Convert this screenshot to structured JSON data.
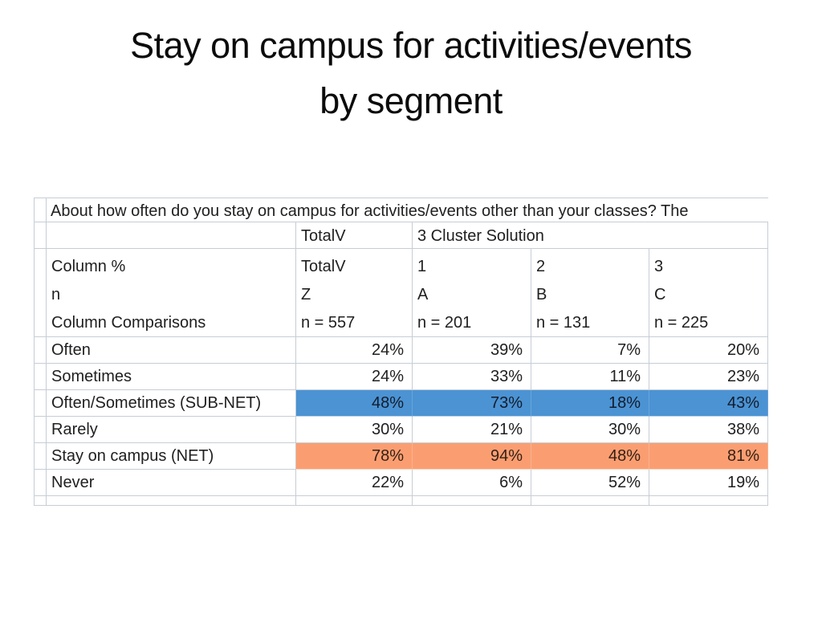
{
  "slide": {
    "title": {
      "line1": "Stay on campus for activities/events",
      "line2": "by segment"
    }
  },
  "table": {
    "question": "About how often do you stay on campus for activities/events other than your classes? The",
    "group_header": {
      "total_label": "TotalV",
      "cluster_label": "3 Cluster Solution"
    },
    "stub_header": {
      "line1": "Column %",
      "line2": "n",
      "line3": "Column Comparisons"
    },
    "column_headers": [
      {
        "line1": "TotalV",
        "line2": "Z",
        "line3": "n = 557"
      },
      {
        "line1": "1",
        "line2": "A",
        "line3": "n = 201"
      },
      {
        "line1": "2",
        "line2": "B",
        "line3": "n = 131"
      },
      {
        "line1": "3",
        "line2": "C",
        "line3": "n = 225"
      }
    ],
    "rows": [
      {
        "label": "Often",
        "values": [
          "24%",
          "39%",
          "7%",
          "20%"
        ],
        "highlight": "none"
      },
      {
        "label": "Sometimes",
        "values": [
          "24%",
          "33%",
          "11%",
          "23%"
        ],
        "highlight": "none"
      },
      {
        "label": "Often/Sometimes (SUB-NET)",
        "values": [
          "48%",
          "73%",
          "18%",
          "43%"
        ],
        "highlight": "blue"
      },
      {
        "label": "Rarely",
        "values": [
          "30%",
          "21%",
          "30%",
          "38%"
        ],
        "highlight": "none"
      },
      {
        "label": "Stay on campus (NET)",
        "values": [
          "78%",
          "94%",
          "48%",
          "81%"
        ],
        "highlight": "orange"
      },
      {
        "label": "Never",
        "values": [
          "22%",
          "6%",
          "52%",
          "19%"
        ],
        "highlight": "none"
      }
    ],
    "colors": {
      "blue_highlight": "#4B93D3",
      "orange_highlight": "#FA9E72",
      "gridline": "#C6CDD5",
      "text": "#202020"
    }
  },
  "chart_data": {
    "type": "table",
    "title": "Stay on campus for activities/events by segment",
    "question": "About how often do you stay on campus for activities/events other than your classes? The",
    "statistic": "Column %",
    "columns": [
      {
        "group": "TotalV",
        "label": "TotalV",
        "comparison_letter": "Z",
        "n": 557
      },
      {
        "group": "3 Cluster Solution",
        "label": "1",
        "comparison_letter": "A",
        "n": 201
      },
      {
        "group": "3 Cluster Solution",
        "label": "2",
        "comparison_letter": "B",
        "n": 131
      },
      {
        "group": "3 Cluster Solution",
        "label": "3",
        "comparison_letter": "C",
        "n": 225
      }
    ],
    "rows": [
      {
        "label": "Often",
        "values_pct": [
          24,
          39,
          7,
          20
        ],
        "highlight": null
      },
      {
        "label": "Sometimes",
        "values_pct": [
          24,
          33,
          11,
          23
        ],
        "highlight": null
      },
      {
        "label": "Often/Sometimes (SUB-NET)",
        "values_pct": [
          48,
          73,
          18,
          43
        ],
        "highlight": "blue"
      },
      {
        "label": "Rarely",
        "values_pct": [
          30,
          21,
          30,
          38
        ],
        "highlight": null
      },
      {
        "label": "Stay on campus (NET)",
        "values_pct": [
          78,
          94,
          48,
          81
        ],
        "highlight": "orange"
      },
      {
        "label": "Never",
        "values_pct": [
          22,
          6,
          52,
          19
        ],
        "highlight": null
      }
    ]
  }
}
